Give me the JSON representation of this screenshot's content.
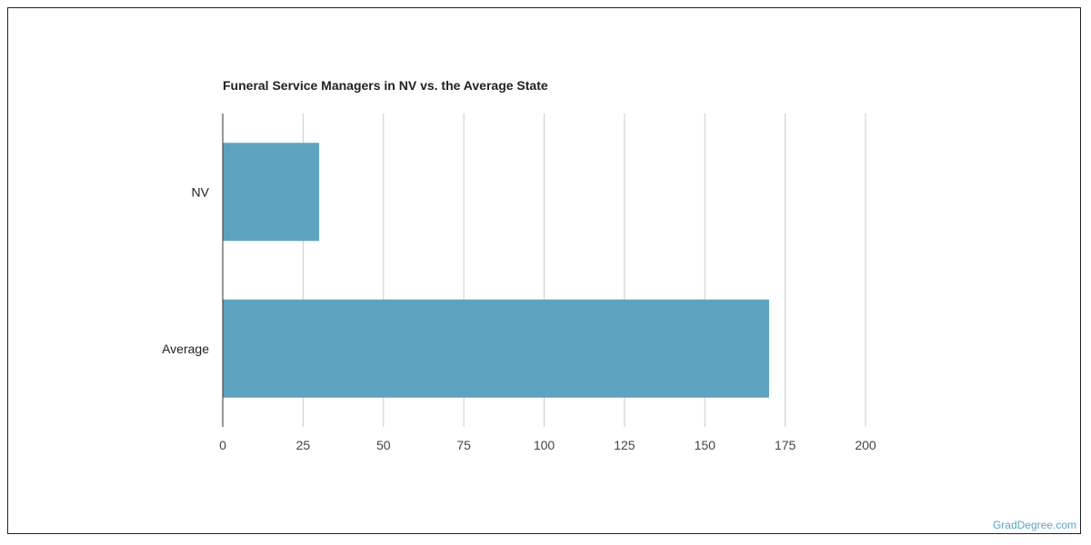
{
  "chart_data": {
    "type": "bar",
    "orientation": "horizontal",
    "title": "Funeral Service Managers in NV vs. the Average State",
    "categories": [
      "NV",
      "Average"
    ],
    "values": [
      30,
      170
    ],
    "xlim": [
      0,
      200
    ],
    "x_ticks": [
      "0",
      "25",
      "50",
      "75",
      "100",
      "125",
      "150",
      "175",
      "200"
    ],
    "x_tick_values": [
      0,
      25,
      50,
      75,
      100,
      125,
      150,
      175,
      200
    ],
    "xlabel": "",
    "ylabel": "",
    "grid": true,
    "legend": "none",
    "bar_color": "#5da3bf",
    "grid_color": "#cccccc"
  },
  "watermark": {
    "text": "GradDegree.com",
    "color": "#5da3bf"
  }
}
